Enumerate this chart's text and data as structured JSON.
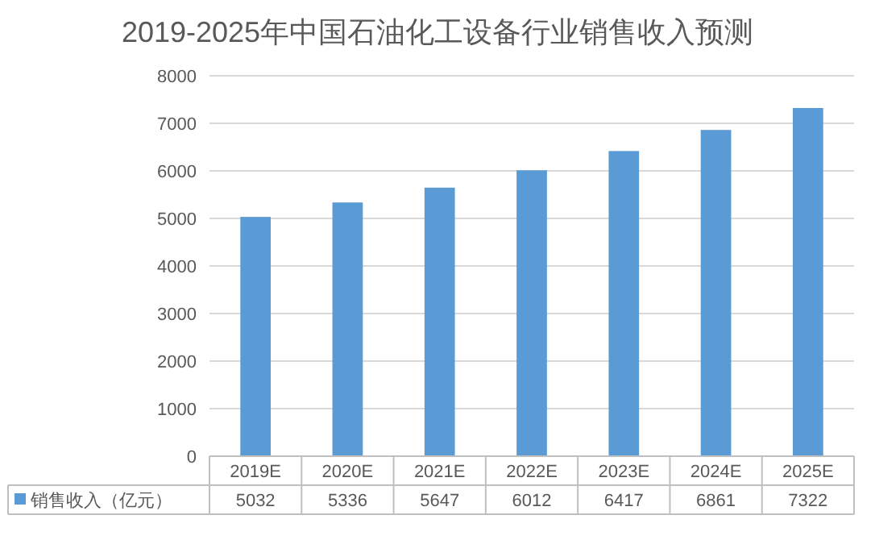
{
  "chart_data": {
    "type": "bar",
    "title": "2019-2025年中国石油化工设备行业销售收入预测",
    "categories": [
      "2019E",
      "2020E",
      "2021E",
      "2022E",
      "2023E",
      "2024E",
      "2025E"
    ],
    "series": [
      {
        "name": "销售收入（亿元）",
        "color": "#5b9bd5",
        "values": [
          5032,
          5336,
          5647,
          6012,
          6417,
          6861,
          7322
        ]
      }
    ],
    "ylim": [
      0,
      8000
    ],
    "yticks": [
      0,
      1000,
      2000,
      3000,
      4000,
      5000,
      6000,
      7000,
      8000
    ],
    "grid": "y",
    "legend": "bottom",
    "data_labels": true
  }
}
